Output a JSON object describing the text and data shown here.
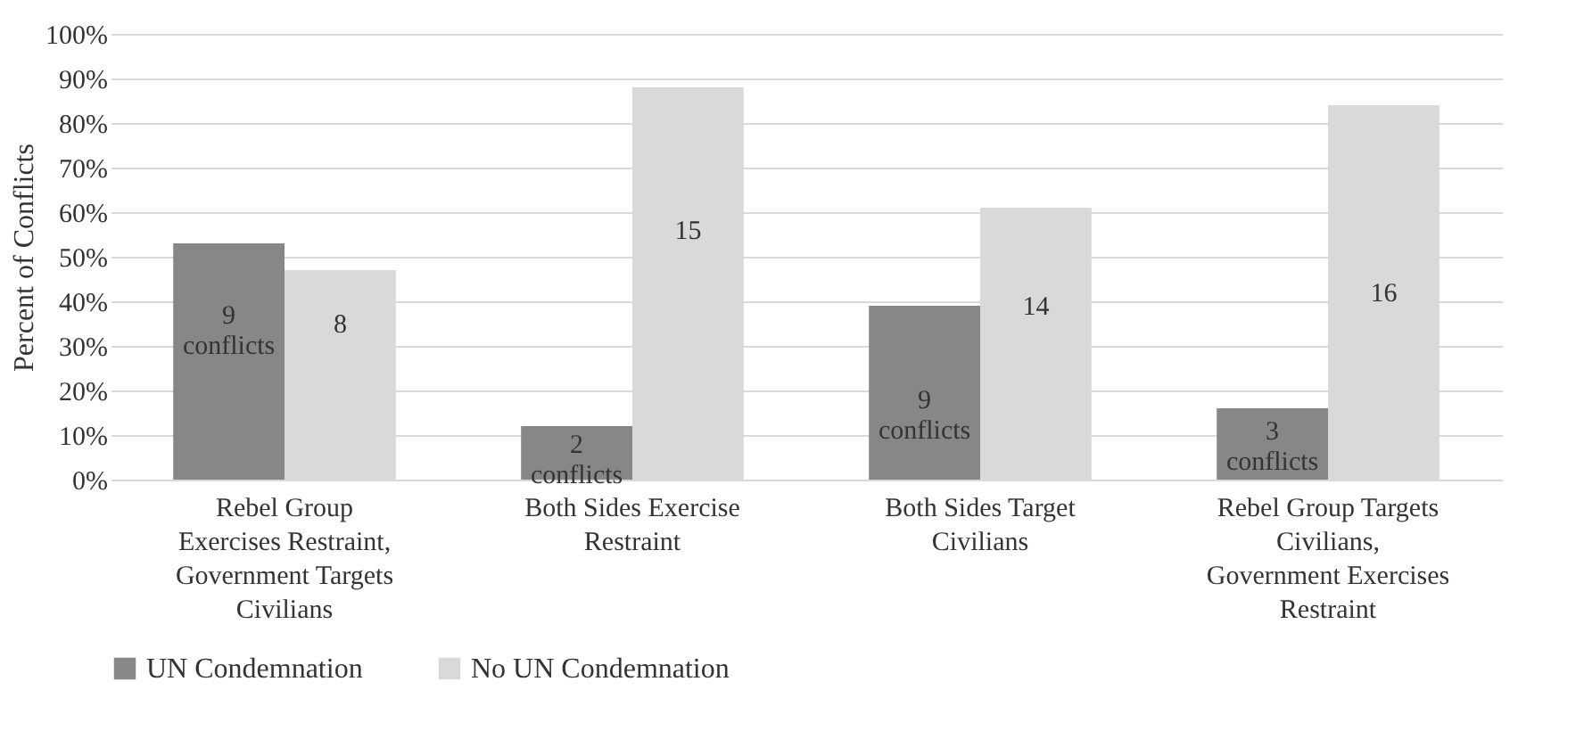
{
  "chart_data": {
    "type": "bar",
    "ylabel": "Percent of Conflicts",
    "categories": [
      "Rebel Group Exercises Restraint, Government Targets Civilians",
      "Both Sides Exercise Restraint",
      "Both Sides Target Civilians",
      "Rebel Group Targets Civilians, Government Exercises Restraint"
    ],
    "series": [
      {
        "name": "UN Condemnation",
        "color": "#878787",
        "values": [
          53,
          12,
          39,
          16
        ]
      },
      {
        "name": "No UN Condemnation",
        "color": "#d9d9d9",
        "values": [
          47,
          88,
          61,
          84
        ]
      }
    ],
    "annotations": [
      {
        "text": "9 conflicts",
        "x": "Rebel Group Exercises Restraint, Government Targets Civilians",
        "y": 37
      },
      {
        "text": "8",
        "x": "Rebel Group Exercises Restraint, Government Targets Civilians",
        "y": 35
      },
      {
        "text": "2 conflicts",
        "x": "Both Sides Exercise Restraint",
        "y": 8
      },
      {
        "text": "15",
        "x": "Both Sides Exercise Restraint",
        "y": 56
      },
      {
        "text": "9 conflicts",
        "x": "Both Sides Target Civilians",
        "y": 18
      },
      {
        "text": "14",
        "x": "Both Sides Target Civilians",
        "y": 39
      },
      {
        "text": "3 conflicts",
        "x": "Rebel Group Targets Civilians, Government Exercises Restraint",
        "y": 11
      },
      {
        "text": "16",
        "x": "Rebel Group Targets Civilians, Government Exercises Restraint",
        "y": 42
      }
    ],
    "ylim": [
      0,
      100
    ],
    "yticks": [
      {
        "value": 0,
        "label": "0%"
      },
      {
        "value": 10,
        "label": "10%"
      },
      {
        "value": 20,
        "label": "20%"
      },
      {
        "value": 30,
        "label": "30%"
      },
      {
        "value": 40,
        "label": "40%"
      },
      {
        "value": 50,
        "label": "50%"
      },
      {
        "value": 60,
        "label": "60%"
      },
      {
        "value": 70,
        "label": "70%"
      },
      {
        "value": 80,
        "label": "80%"
      },
      {
        "value": 90,
        "label": "90%"
      },
      {
        "value": 100,
        "label": "100%"
      }
    ],
    "grid": "y",
    "legend": "bottom"
  }
}
